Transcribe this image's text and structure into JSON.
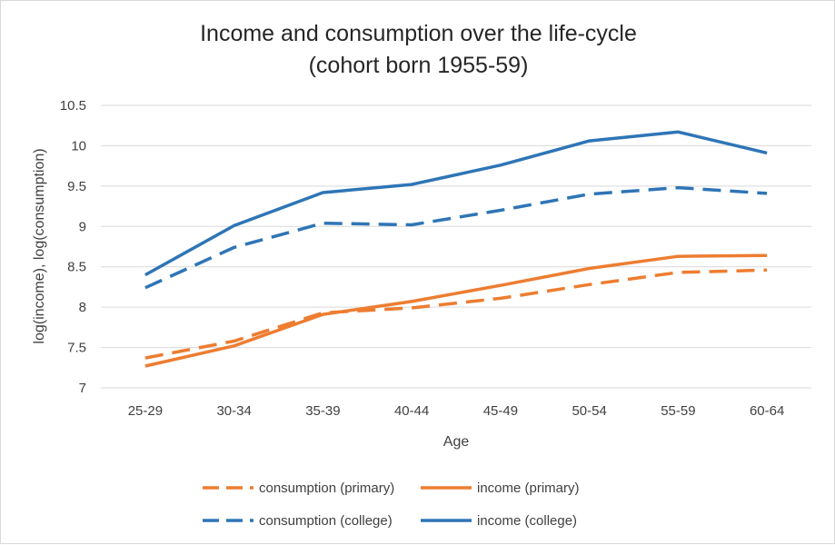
{
  "chart_data": {
    "type": "line",
    "title": "Income and consumption over the life-cycle",
    "subtitle": "(cohort born 1955-59)",
    "xlabel": "Age",
    "ylabel": "log(income),  log(consumption)",
    "categories": [
      "25-29",
      "30-34",
      "35-39",
      "40-44",
      "45-49",
      "50-54",
      "55-59",
      "60-64"
    ],
    "ylim": [
      7,
      10.5
    ],
    "yticks": [
      "7",
      "7.5",
      "8",
      "8.5",
      "9",
      "9.5",
      "10",
      "10.5"
    ],
    "grid": true,
    "legend_position": "bottom",
    "series": [
      {
        "name": "consumption (primary)",
        "color": "#ed7d31",
        "dash": true,
        "values": [
          7.37,
          7.58,
          7.93,
          7.99,
          8.11,
          8.28,
          8.43,
          8.46
        ]
      },
      {
        "name": "income (primary)",
        "color": "#ed7d31",
        "dash": false,
        "values": [
          7.27,
          7.52,
          7.91,
          8.07,
          8.27,
          8.48,
          8.63,
          8.64
        ]
      },
      {
        "name": "consumption (college)",
        "color": "#2e75b6",
        "dash": true,
        "values": [
          8.24,
          8.74,
          9.04,
          9.02,
          9.2,
          9.4,
          9.48,
          9.41
        ]
      },
      {
        "name": "income (college)",
        "color": "#2e75b6",
        "dash": false,
        "values": [
          8.4,
          9.01,
          9.42,
          9.52,
          9.76,
          10.06,
          10.17,
          9.91
        ]
      }
    ]
  }
}
